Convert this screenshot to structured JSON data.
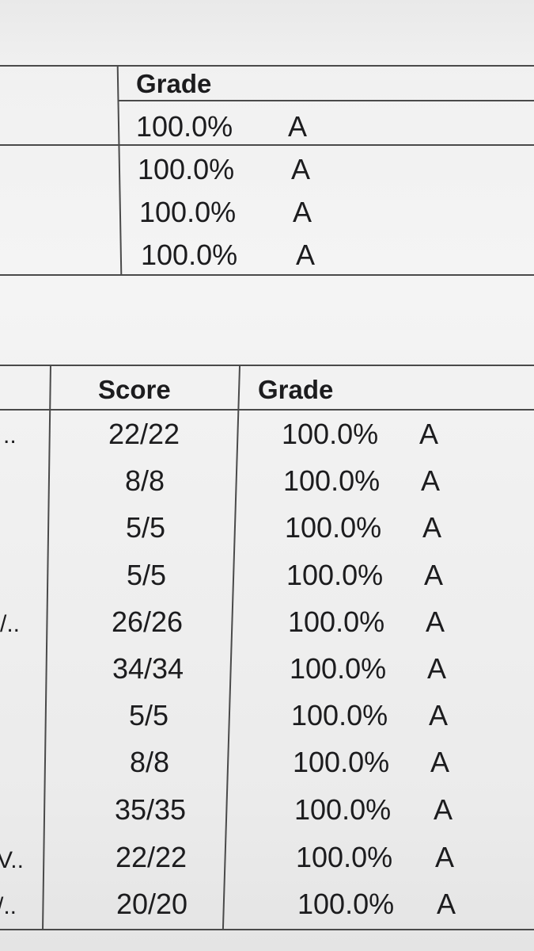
{
  "table1": {
    "grade_header": "Grade",
    "rows": [
      {
        "percent": "100.0%",
        "letter": "A"
      },
      {
        "percent": "100.0%",
        "letter": "A"
      },
      {
        "percent": "100.0%",
        "letter": "A"
      },
      {
        "percent": "100.0%",
        "letter": "A"
      }
    ]
  },
  "table2": {
    "score_header": "Score",
    "grade_header": "Grade",
    "rows": [
      {
        "name_tail": "..",
        "score": "22/22",
        "percent": "100.0%",
        "letter": "A"
      },
      {
        "name_tail": "",
        "score": "8/8",
        "percent": "100.0%",
        "letter": "A"
      },
      {
        "name_tail": "",
        "score": "5/5",
        "percent": "100.0%",
        "letter": "A"
      },
      {
        "name_tail": "",
        "score": "5/5",
        "percent": "100.0%",
        "letter": "A"
      },
      {
        "name_tail": "/..",
        "score": "26/26",
        "percent": "100.0%",
        "letter": "A"
      },
      {
        "name_tail": "",
        "score": "34/34",
        "percent": "100.0%",
        "letter": "A"
      },
      {
        "name_tail": "",
        "score": "5/5",
        "percent": "100.0%",
        "letter": "A"
      },
      {
        "name_tail": "",
        "score": "8/8",
        "percent": "100.0%",
        "letter": "A"
      },
      {
        "name_tail": "",
        "score": "35/35",
        "percent": "100.0%",
        "letter": "A"
      },
      {
        "name_tail": "V..",
        "score": "22/22",
        "percent": "100.0%",
        "letter": "A"
      },
      {
        "name_tail": "/..",
        "score": "20/20",
        "percent": "100.0%",
        "letter": "A"
      }
    ]
  }
}
